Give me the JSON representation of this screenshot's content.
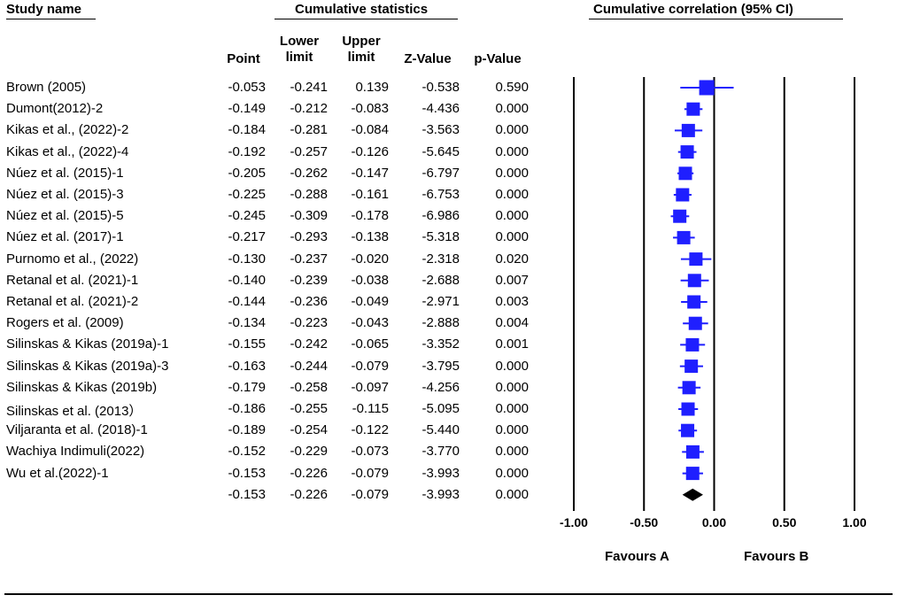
{
  "headers": {
    "study": "Study name",
    "cumulative": "Cumulative statistics",
    "correlation": "Cumulative correlation (95% CI)"
  },
  "columns": {
    "point": "Point",
    "lower_1": "Lower",
    "lower_2": "limit",
    "upper_1": "Upper",
    "upper_2": "limit",
    "z": "Z-Value",
    "p": "p-Value"
  },
  "favours": {
    "a": "Favours A",
    "b": "Favours B"
  },
  "colors": {
    "study_marker": "#1f1fff",
    "summary_marker": "#000000"
  },
  "chart_data": {
    "type": "forest",
    "xlim": [
      -1.0,
      1.0
    ],
    "x_ticks": [
      "-1.00",
      "-0.50",
      "0.00",
      "0.50",
      "1.00"
    ],
    "rows": [
      {
        "name": "Brown (2005)",
        "point": "-0.053",
        "lower": "-0.241",
        "upper": "0.139",
        "z": "-0.538",
        "p": "0.590"
      },
      {
        "name": "Dumont(2012)-2",
        "point": "-0.149",
        "lower": "-0.212",
        "upper": "-0.083",
        "z": "-4.436",
        "p": "0.000"
      },
      {
        "name": "Kikas et al., (2022)-2",
        "point": "-0.184",
        "lower": "-0.281",
        "upper": "-0.084",
        "z": "-3.563",
        "p": "0.000"
      },
      {
        "name": "Kikas et al., (2022)-4",
        "point": "-0.192",
        "lower": "-0.257",
        "upper": "-0.126",
        "z": "-5.645",
        "p": "0.000"
      },
      {
        "name": "Núez  et al. (2015)-1",
        "point": "-0.205",
        "lower": "-0.262",
        "upper": "-0.147",
        "z": "-6.797",
        "p": "0.000"
      },
      {
        "name": "Núez  et al. (2015)-3",
        "point": "-0.225",
        "lower": "-0.288",
        "upper": "-0.161",
        "z": "-6.753",
        "p": "0.000"
      },
      {
        "name": "Núez  et al. (2015)-5",
        "point": "-0.245",
        "lower": "-0.309",
        "upper": "-0.178",
        "z": "-6.986",
        "p": "0.000"
      },
      {
        "name": "Núez  et al. (2017)-1",
        "point": "-0.217",
        "lower": "-0.293",
        "upper": "-0.138",
        "z": "-5.318",
        "p": "0.000"
      },
      {
        "name": "Purnomo et al., (2022)",
        "point": "-0.130",
        "lower": "-0.237",
        "upper": "-0.020",
        "z": "-2.318",
        "p": "0.020"
      },
      {
        "name": "Retanal et al. (2021)-1",
        "point": "-0.140",
        "lower": "-0.239",
        "upper": "-0.038",
        "z": "-2.688",
        "p": "0.007"
      },
      {
        "name": "Retanal et al. (2021)-2",
        "point": "-0.144",
        "lower": "-0.236",
        "upper": "-0.049",
        "z": "-2.971",
        "p": "0.003"
      },
      {
        "name": "Rogers et al. (2009)",
        "point": "-0.134",
        "lower": "-0.223",
        "upper": "-0.043",
        "z": "-2.888",
        "p": "0.004"
      },
      {
        "name": "Silinskas & Kikas (2019a)-1",
        "point": "-0.155",
        "lower": "-0.242",
        "upper": "-0.065",
        "z": "-3.352",
        "p": "0.001"
      },
      {
        "name": "Silinskas & Kikas (2019a)-3",
        "point": "-0.163",
        "lower": "-0.244",
        "upper": "-0.079",
        "z": "-3.795",
        "p": "0.000"
      },
      {
        "name": "Silinskas & Kikas (2019b)",
        "point": "-0.179",
        "lower": "-0.258",
        "upper": "-0.097",
        "z": "-4.256",
        "p": "0.000"
      },
      {
        "name": "Silinskas et al. (2013）",
        "point": "-0.186",
        "lower": "-0.255",
        "upper": "-0.115",
        "z": "-5.095",
        "p": "0.000"
      },
      {
        "name": "Viljaranta et al. (2018)-1",
        "point": "-0.189",
        "lower": "-0.254",
        "upper": "-0.122",
        "z": "-5.440",
        "p": "0.000"
      },
      {
        "name": "Wachiya Indimuli(2022)",
        "point": "-0.152",
        "lower": "-0.229",
        "upper": "-0.073",
        "z": "-3.770",
        "p": "0.000"
      },
      {
        "name": "Wu et al.(2022)-1",
        "point": "-0.153",
        "lower": "-0.226",
        "upper": "-0.079",
        "z": "-3.993",
        "p": "0.000"
      }
    ],
    "summary": {
      "name": "",
      "point": "-0.153",
      "lower": "-0.226",
      "upper": "-0.079",
      "z": "-3.993",
      "p": "0.000"
    }
  }
}
